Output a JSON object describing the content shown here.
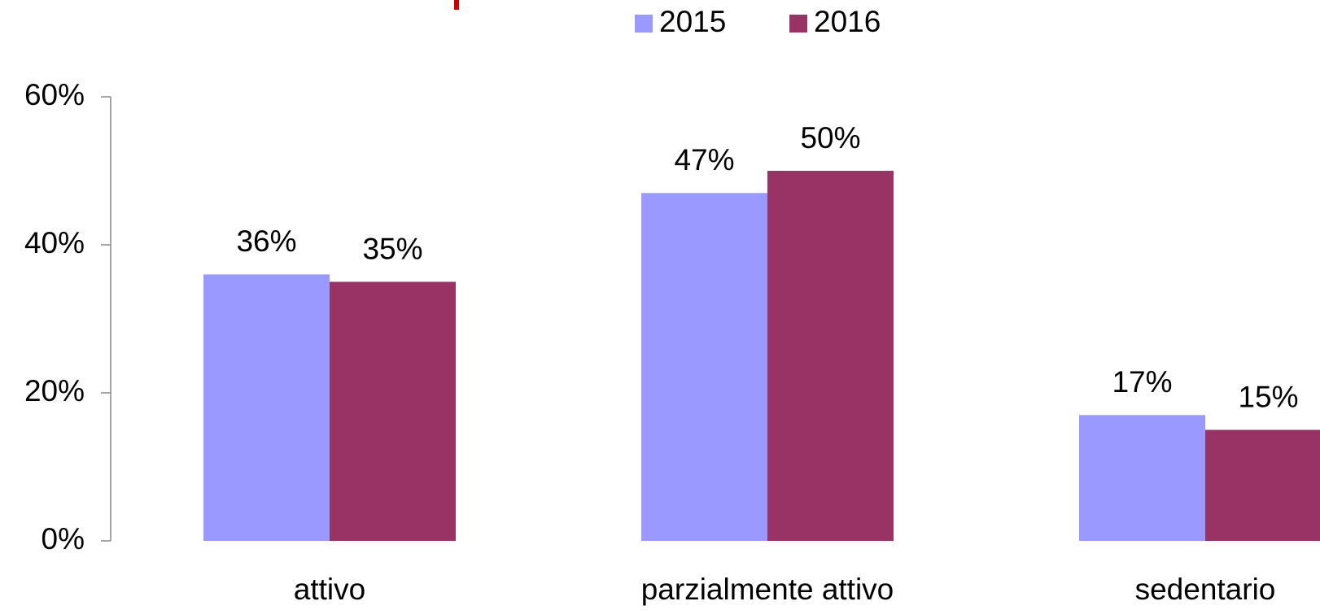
{
  "chart_data": {
    "type": "bar",
    "categories": [
      "attivo",
      "parzialmente attivo",
      "sedentario"
    ],
    "series": [
      {
        "name": "2015",
        "color": "#9999ff",
        "values": [
          36,
          47,
          17
        ],
        "value_labels": [
          "36%",
          "47%",
          "17%"
        ]
      },
      {
        "name": "2016",
        "color": "#993366",
        "values": [
          35,
          50,
          15
        ],
        "value_labels": [
          "35%",
          "50%",
          "15%"
        ]
      }
    ],
    "ylim": [
      0,
      60
    ],
    "yticks": [
      {
        "value": 0,
        "label": "0%"
      },
      {
        "value": 20,
        "label": "20%"
      },
      {
        "value": 40,
        "label": "40%"
      },
      {
        "value": 60,
        "label": "60%"
      }
    ],
    "legend": "top"
  }
}
